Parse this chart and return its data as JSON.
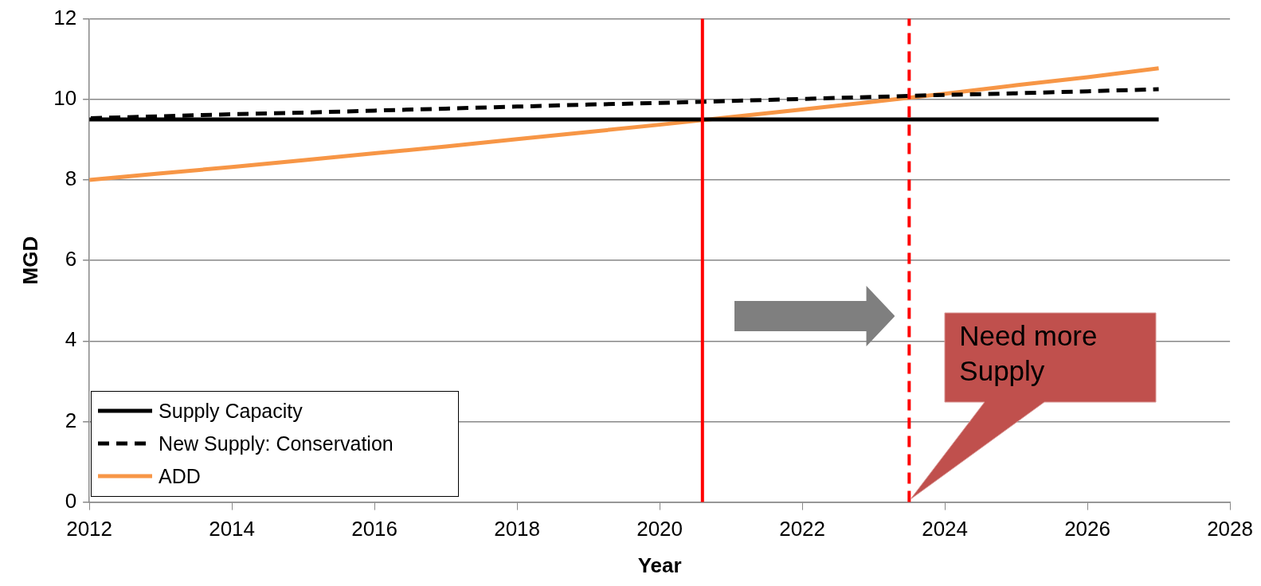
{
  "chart_data": {
    "type": "line",
    "xlabel": "Year",
    "ylabel": "MGD",
    "x": [
      2012,
      2013,
      2014,
      2015,
      2016,
      2017,
      2018,
      2019,
      2020,
      2021,
      2022,
      2023,
      2024,
      2025,
      2026,
      2027
    ],
    "series": [
      {
        "name": "Supply Capacity",
        "color": "#000000",
        "line_style": "solid",
        "values": [
          9.5,
          9.5,
          9.5,
          9.5,
          9.5,
          9.5,
          9.5,
          9.5,
          9.5,
          9.5,
          9.5,
          9.5,
          9.5,
          9.5,
          9.5,
          9.5
        ]
      },
      {
        "name": "New Supply: Conservation",
        "color": "#000000",
        "line_style": "dashed",
        "values": [
          9.53,
          9.58,
          9.63,
          9.67,
          9.72,
          9.77,
          9.82,
          9.87,
          9.91,
          9.96,
          10.01,
          10.06,
          10.11,
          10.15,
          10.2,
          10.25
        ]
      },
      {
        "name": "ADD",
        "color": "#f79646",
        "line_style": "solid",
        "values": [
          8.0,
          8.16,
          8.32,
          8.49,
          8.66,
          8.83,
          9.01,
          9.19,
          9.37,
          9.56,
          9.75,
          9.94,
          10.14,
          10.35,
          10.55,
          10.77
        ]
      }
    ],
    "xlim": [
      2012,
      2028
    ],
    "xticks": [
      2012,
      2014,
      2016,
      2018,
      2020,
      2022,
      2024,
      2026,
      2028
    ],
    "ylim": [
      0,
      12
    ],
    "yticks": [
      0,
      2,
      4,
      6,
      8,
      10,
      12
    ],
    "ref_lines": [
      {
        "axis": "x",
        "value": 2020.6,
        "color": "#ff0000",
        "line_style": "solid"
      },
      {
        "axis": "x",
        "value": 2023.5,
        "color": "#ff0000",
        "line_style": "dashed"
      }
    ],
    "annotations": [
      "Need more Supply"
    ],
    "grid": "y",
    "legend": "bottom left",
    "marker": "none"
  }
}
